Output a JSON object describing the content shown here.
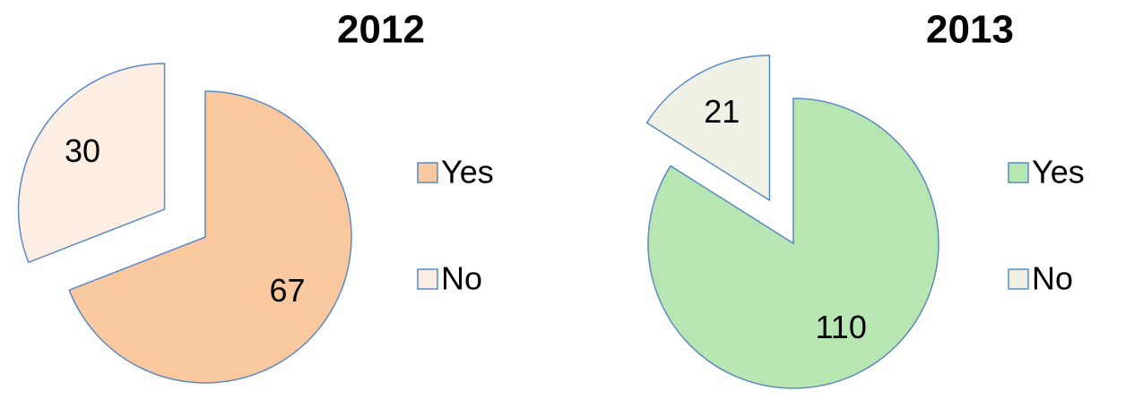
{
  "chart_data": [
    {
      "type": "pie",
      "title": "2012",
      "categories": [
        "Yes",
        "No"
      ],
      "values": [
        67,
        30
      ],
      "colors": [
        "#f9c89e",
        "#fdeee3"
      ]
    },
    {
      "type": "pie",
      "title": "2013",
      "categories": [
        "Yes",
        "No"
      ],
      "values": [
        110,
        21
      ],
      "colors": [
        "#b7e6b2",
        "#eff1e5"
      ]
    }
  ]
}
